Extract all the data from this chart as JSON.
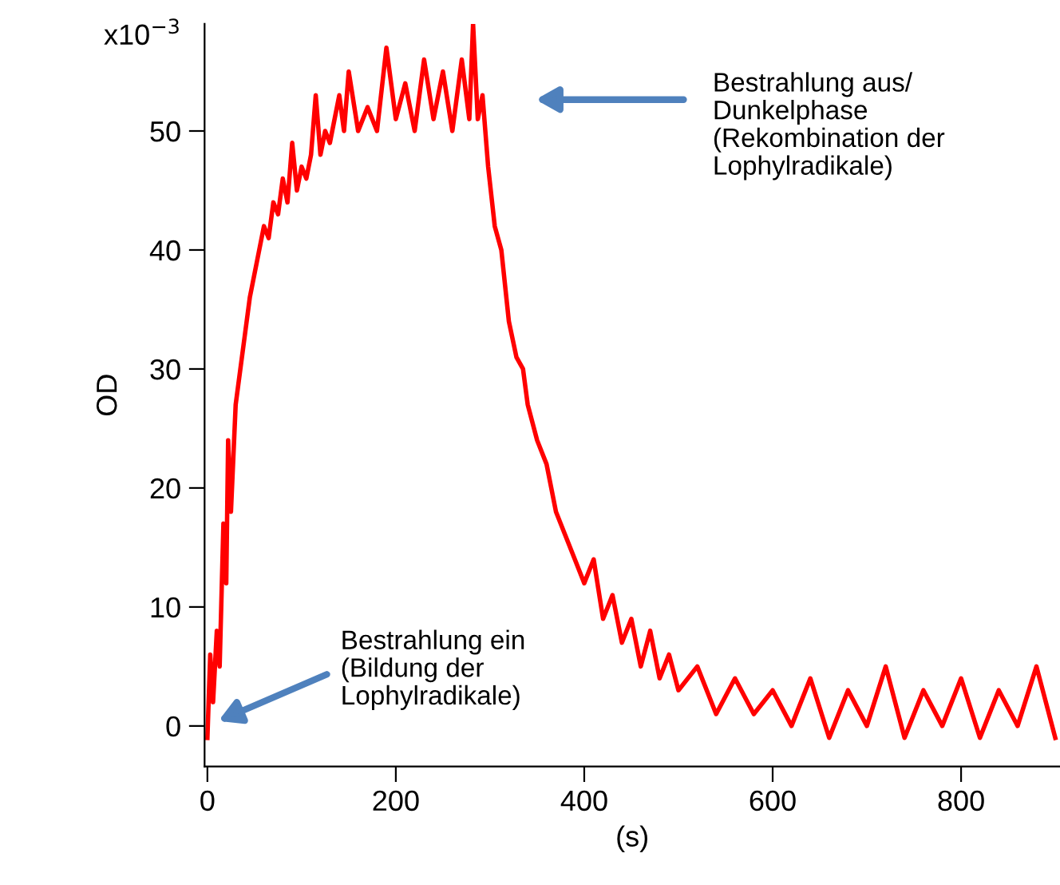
{
  "chart_data": {
    "type": "line",
    "xlabel": "(s)",
    "ylabel": "OD",
    "x": [
      0,
      3,
      6,
      10,
      13,
      17,
      20,
      22,
      25,
      30,
      35,
      40,
      45,
      50,
      55,
      60,
      65,
      70,
      75,
      80,
      85,
      90,
      95,
      100,
      105,
      110,
      115,
      120,
      125,
      130,
      140,
      145,
      150,
      160,
      170,
      180,
      190,
      200,
      210,
      220,
      230,
      240,
      250,
      260,
      270,
      278,
      282,
      287,
      292,
      298,
      305,
      312,
      320,
      328,
      335,
      340,
      350,
      360,
      370,
      380,
      390,
      400,
      410,
      420,
      430,
      440,
      450,
      460,
      470,
      480,
      490,
      500,
      520,
      540,
      560,
      580,
      600,
      620,
      640,
      660,
      680,
      700,
      720,
      740,
      760,
      780,
      800,
      820,
      840,
      860,
      880,
      900
    ],
    "series": [
      {
        "color": "#ff0000",
        "values": [
          -1,
          6,
          2,
          8,
          5,
          17,
          12,
          24,
          18,
          27,
          30,
          33,
          36,
          38,
          40,
          42,
          41,
          44,
          43,
          46,
          44,
          49,
          45,
          47,
          46,
          48,
          53,
          48,
          50,
          49,
          53,
          50,
          55,
          50,
          52,
          50,
          57,
          51,
          54,
          50,
          56,
          51,
          55,
          50,
          56,
          51,
          59,
          51,
          53,
          47,
          42,
          40,
          34,
          31,
          30,
          27,
          24,
          22,
          18,
          16,
          14,
          12,
          14,
          9,
          11,
          7,
          9,
          5,
          8,
          4,
          6,
          3,
          5,
          1,
          4,
          1,
          3,
          0,
          4,
          -1,
          3,
          0,
          5,
          -1,
          3,
          0,
          4,
          -1,
          3,
          0,
          5,
          -1
        ]
      }
    ],
    "xlim": [
      -3,
      905
    ],
    "xticks": [
      0,
      200,
      400,
      600,
      800
    ],
    "ylim": [
      -3.4,
      59
    ],
    "yticks": [
      0,
      10,
      20,
      30,
      40,
      50
    ],
    "grid": false,
    "legend": false,
    "marker": "none",
    "line_style": "solid",
    "annotations": [
      "Bestrahlung aus/\nDunkelphase\n(Rekombination der\nLophylradikale)",
      "Bestrahlung ein\n(Bildung der\nLophylradikale)",
      "x10$^{−3}$"
    ]
  }
}
